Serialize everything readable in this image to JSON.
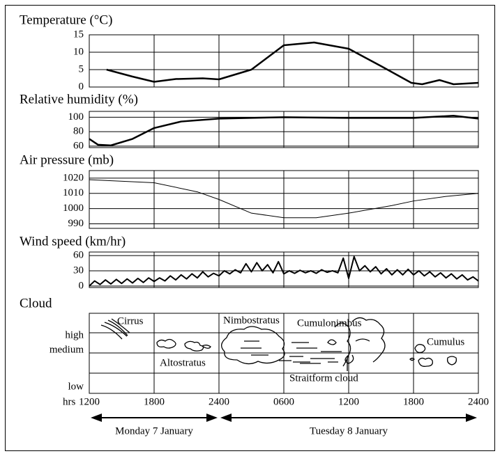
{
  "chart_data": [
    {
      "type": "line",
      "title": "Temperature (°C)",
      "color": "#000000",
      "xlim": [
        12,
        48
      ],
      "xticks": [
        12,
        18,
        24,
        30,
        36,
        42,
        48
      ],
      "ylim": [
        0,
        15
      ],
      "yticks": [
        0,
        5,
        10,
        15
      ],
      "x": [
        13.6,
        16,
        18,
        20,
        22.5,
        24,
        27,
        30,
        32.8,
        36,
        39,
        41.8,
        42.8,
        44.4,
        45.7,
        48
      ],
      "values": [
        5,
        3,
        1.5,
        2.3,
        2.5,
        2.2,
        5,
        12,
        12.8,
        11,
        6,
        1.2,
        0.8,
        2,
        0.8,
        1.2
      ]
    },
    {
      "type": "line",
      "title": "Relative humidity (%)",
      "color": "#000000",
      "xlim": [
        12,
        48
      ],
      "xticks": [
        12,
        18,
        24,
        30,
        36,
        42,
        48
      ],
      "ylim": [
        58,
        108
      ],
      "yticks": [
        60,
        80,
        100
      ],
      "x": [
        12,
        12.8,
        14,
        16,
        18,
        20.5,
        24,
        30,
        36,
        42,
        45.7,
        48
      ],
      "values": [
        70,
        62,
        61,
        70,
        85,
        94,
        98,
        100,
        99,
        99,
        102,
        98
      ]
    },
    {
      "type": "line",
      "title": "Air pressure (mb)",
      "color": "#000000",
      "xlim": [
        12,
        48
      ],
      "xticks": [
        12,
        18,
        24,
        30,
        36,
        42,
        48
      ],
      "ylim": [
        987,
        1025
      ],
      "yticks": [
        990,
        1000,
        1010,
        1020
      ],
      "x": [
        12,
        18,
        22,
        24,
        27,
        30,
        33,
        36,
        40,
        42,
        45,
        48
      ],
      "values": [
        1019,
        1017,
        1011,
        1006,
        997,
        994,
        994,
        997,
        1002,
        1005,
        1008,
        1010
      ]
    },
    {
      "type": "line",
      "title": "Wind speed (km/hr)",
      "color": "#000000",
      "xlim": [
        12,
        48
      ],
      "xticks": [
        12,
        18,
        24,
        30,
        36,
        42,
        48
      ],
      "ylim": [
        -3,
        67
      ],
      "yticks": [
        0,
        30,
        60
      ],
      "x": [
        12,
        12.5,
        13,
        13.5,
        14,
        14.5,
        15,
        15.5,
        16,
        16.5,
        17,
        17.5,
        18,
        18.5,
        19,
        19.5,
        20,
        20.5,
        21,
        21.5,
        22,
        22.5,
        23,
        23.5,
        24,
        24.5,
        25,
        25.5,
        26,
        26.5,
        27,
        27.5,
        28,
        28.5,
        29,
        29.5,
        30,
        30.5,
        31,
        31.5,
        32,
        32.5,
        33,
        33.5,
        34,
        34.5,
        35,
        35.5,
        36,
        36.5,
        37,
        37.5,
        38,
        38.5,
        39,
        39.5,
        40,
        40.5,
        41,
        41.5,
        42,
        42.5,
        43,
        43.5,
        44,
        44.5,
        45,
        45.5,
        46,
        46.5,
        47,
        47.5,
        48
      ],
      "values": [
        0,
        10,
        3,
        12,
        4,
        13,
        5,
        14,
        6,
        15,
        7,
        16,
        9,
        16,
        10,
        20,
        12,
        22,
        14,
        24,
        16,
        28,
        18,
        25,
        20,
        30,
        24,
        32,
        26,
        44,
        28,
        46,
        30,
        42,
        26,
        48,
        24,
        30,
        25,
        31,
        26,
        30,
        25,
        32,
        27,
        30,
        26,
        55,
        15,
        58,
        30,
        40,
        28,
        38,
        24,
        34,
        22,
        32,
        22,
        33,
        22,
        30,
        20,
        28,
        18,
        26,
        16,
        24,
        14,
        22,
        12,
        18,
        10
      ]
    },
    {
      "type": "cloud",
      "title": "Cloud",
      "xlim": [
        12,
        48
      ],
      "xticks": [
        {
          "value": 12,
          "label": "1200"
        },
        {
          "value": 18,
          "label": "1800"
        },
        {
          "value": 24,
          "label": "2400"
        },
        {
          "value": 30,
          "label": "0600"
        },
        {
          "value": 36,
          "label": "1200"
        },
        {
          "value": 42,
          "label": "1800"
        },
        {
          "value": 48,
          "label": "2400"
        }
      ],
      "x_label": "hrs",
      "categories": [
        "high",
        "medium",
        "low"
      ],
      "annotations": [
        "Cirrus",
        "Altostratus",
        "Nimbostratus",
        "Cumulonimbus",
        "Cumulus",
        "Straitform cloud"
      ],
      "periods": [
        {
          "label": "Monday 7 January",
          "range": [
            12,
            24
          ]
        },
        {
          "label": "Tuesday 8 January",
          "range": [
            24,
            48
          ]
        }
      ]
    }
  ]
}
